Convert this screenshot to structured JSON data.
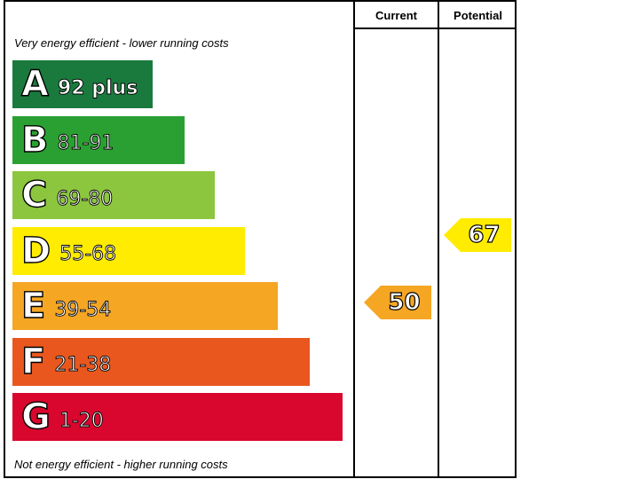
{
  "chart_data": {
    "type": "bar",
    "headers": {
      "current": "Current",
      "potential": "Potential"
    },
    "notes": {
      "top": "Very energy efficient - lower running costs",
      "bottom": "Not energy efficient - higher running costs"
    },
    "bands": [
      {
        "letter": "A",
        "range": "92 plus",
        "color": "#1a7a3e"
      },
      {
        "letter": "B",
        "range": "81-91",
        "color": "#2ba032"
      },
      {
        "letter": "C",
        "range": "69-80",
        "color": "#8cc63e"
      },
      {
        "letter": "D",
        "range": "55-68",
        "color": "#ffec00"
      },
      {
        "letter": "E",
        "range": "39-54",
        "color": "#f5a623"
      },
      {
        "letter": "F",
        "range": "21-38",
        "color": "#e9571f"
      },
      {
        "letter": "G",
        "range": "1-20",
        "color": "#d9062e"
      }
    ],
    "current": {
      "value": 50,
      "band": "E",
      "color": "#f5a623"
    },
    "potential": {
      "value": 67,
      "band": "D",
      "color": "#ffec00"
    }
  }
}
